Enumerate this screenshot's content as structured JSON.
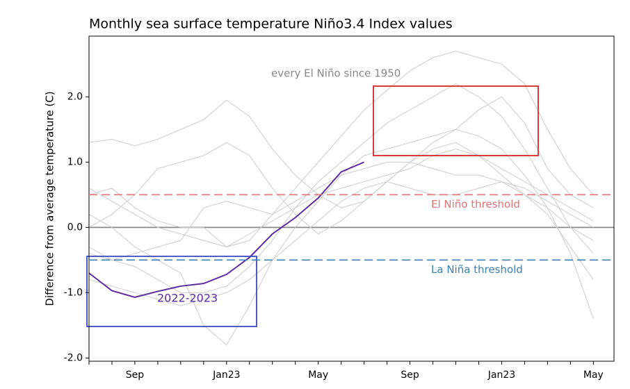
{
  "chart_data": {
    "type": "line",
    "title": "Monthly sea surface temperature Niño3.4 Index values",
    "ylabel": "Difference from average temperature (C)",
    "categories": [
      null,
      null,
      "Sep",
      null,
      null,
      null,
      "Jan23",
      null,
      null,
      null,
      "May",
      null,
      null,
      null,
      "Sep",
      null,
      null,
      null,
      "Jan23",
      null,
      null,
      null,
      "May"
    ],
    "xlim": [
      0,
      22.9
    ],
    "ylim": [
      -2.05,
      2.93
    ],
    "yticks": [
      {
        "value": -2,
        "label": "-2.0"
      },
      {
        "value": -1,
        "label": "-1.0"
      },
      {
        "value": 0,
        "label": "0.0"
      },
      {
        "value": 1,
        "label": "1.0"
      },
      {
        "value": 2,
        "label": "2.0"
      }
    ],
    "grid": false,
    "zero_line": {
      "value": 0,
      "color": "#888888"
    },
    "thresholds": [
      {
        "label": "El Niño threshold",
        "value": 0.5,
        "color": "#e57373"
      },
      {
        "label": "La Niña threshold",
        "value": -0.5,
        "color": "#3d7fb2"
      }
    ],
    "annotations": [
      "every El Niño since 1950"
    ],
    "series": [
      {
        "color": "#cccccc",
        "values": [
          0.5,
          0.6,
          0.3,
          0.1,
          0.0,
          0.0,
          -0.3,
          -0.2,
          0.2,
          0.6,
          1.0,
          1.4,
          1.8,
          2.1,
          2.4,
          2.6,
          2.7,
          2.6,
          2.5,
          2.2,
          1.5,
          0.9,
          0.5
        ]
      },
      {
        "color": "#cccccc",
        "values": [
          1.3,
          1.35,
          1.25,
          1.35,
          1.5,
          1.65,
          1.95,
          1.7,
          1.2,
          0.8,
          0.5,
          0.3,
          0.4,
          0.7,
          1.0,
          1.3,
          1.5,
          1.8,
          2.0,
          1.6,
          0.9,
          0.5,
          0.3
        ]
      },
      {
        "color": "#cccccc",
        "values": [
          -0.3,
          -0.5,
          -0.6,
          -0.8,
          -1.0,
          -1.0,
          -0.9,
          -0.6,
          -0.2,
          0.3,
          0.7,
          1.0,
          1.3,
          1.6,
          1.8,
          2.0,
          2.2,
          2.0,
          1.7,
          1.2,
          0.6,
          0.0,
          -0.4
        ]
      },
      {
        "color": "#cccccc",
        "values": [
          0.2,
          0.0,
          -0.3,
          -0.5,
          -0.7,
          -1.5,
          -1.8,
          -1.2,
          -0.5,
          0.0,
          0.4,
          0.8,
          1.1,
          1.2,
          1.3,
          1.4,
          1.5,
          1.4,
          1.2,
          0.8,
          0.3,
          -0.4,
          -1.4
        ]
      },
      {
        "color": "#cccccc",
        "values": [
          -0.4,
          -0.5,
          -0.4,
          -0.3,
          -0.2,
          0.3,
          0.4,
          0.3,
          0.2,
          0.4,
          0.6,
          0.8,
          0.9,
          1.0,
          1.0,
          0.9,
          0.8,
          0.8,
          0.7,
          0.5,
          0.3,
          0.0,
          -0.2
        ]
      },
      {
        "color": "#cccccc",
        "values": [
          0.6,
          0.4,
          0.2,
          0.0,
          -0.1,
          -0.2,
          -0.3,
          -0.1,
          0.1,
          0.3,
          0.5,
          0.6,
          0.7,
          0.8,
          0.9,
          1.1,
          1.2,
          1.1,
          0.9,
          0.7,
          0.5,
          0.3,
          0.1
        ]
      },
      {
        "color": "#cccccc",
        "values": [
          -0.8,
          -0.9,
          -1.0,
          -1.1,
          -1.2,
          -1.1,
          -1.0,
          -0.8,
          -0.5,
          -0.2,
          0.1,
          0.4,
          0.6,
          0.7,
          0.6,
          0.5,
          0.5,
          0.6,
          0.7,
          0.6,
          0.4,
          0.2,
          0.0
        ]
      },
      {
        "color": "#cccccc",
        "values": [
          0.0,
          0.2,
          0.5,
          0.9,
          1.0,
          1.1,
          1.3,
          1.1,
          0.6,
          0.2,
          -0.1,
          0.1,
          0.4,
          0.7,
          1.0,
          1.2,
          1.3,
          1.1,
          0.8,
          0.5,
          0.2,
          -0.3,
          -0.8
        ]
      },
      {
        "name": "2022-2023",
        "color": "#5b2d9e",
        "values": [
          -0.7,
          -0.97,
          -1.07,
          -0.98,
          -0.9,
          -0.86,
          -0.72,
          -0.46,
          -0.1,
          0.15,
          0.45,
          0.85,
          1.0,
          null,
          null,
          null,
          null,
          null,
          null,
          null,
          null,
          null,
          null
        ]
      }
    ]
  }
}
